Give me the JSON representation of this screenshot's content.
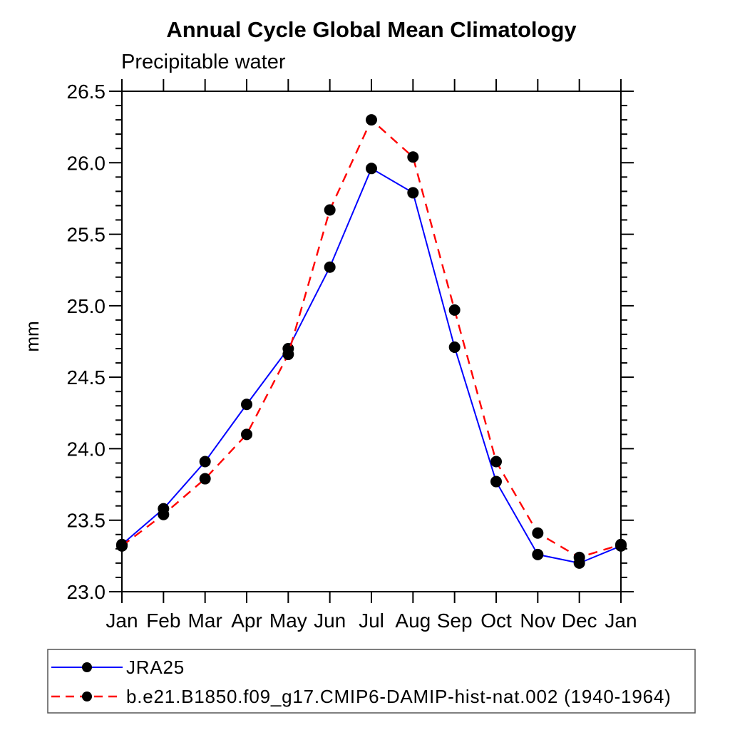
{
  "chart_data": {
    "type": "line",
    "title": "Annual Cycle Global Mean Climatology",
    "subtitle": "Precipitable water",
    "ylabel": "mm",
    "xlabel": "",
    "categories": [
      "Jan",
      "Feb",
      "Mar",
      "Apr",
      "May",
      "Jun",
      "Jul",
      "Aug",
      "Sep",
      "Oct",
      "Nov",
      "Dec",
      "Jan"
    ],
    "ylim": [
      23.0,
      26.5
    ],
    "ytick_major_interval": 0.5,
    "ytick_minor_interval": 0.1,
    "grid": false,
    "legend_position": "bottom-left-box",
    "marker_color": "#000000",
    "series": [
      {
        "name": "JRA25",
        "color": "#0000ff",
        "style": "solid",
        "marker": "circle",
        "values": [
          23.33,
          23.58,
          23.91,
          24.31,
          24.7,
          25.27,
          25.96,
          25.79,
          24.71,
          23.77,
          23.26,
          23.2,
          23.32
        ]
      },
      {
        "name": "b.e21.B1850.f09_g17.CMIP6-DAMIP-hist-nat.002 (1940-1964)",
        "color": "#ff0000",
        "style": "dashed",
        "marker": "circle",
        "values": [
          23.32,
          23.54,
          23.79,
          24.1,
          24.66,
          25.67,
          26.3,
          26.04,
          24.97,
          23.91,
          23.41,
          23.24,
          23.33
        ]
      }
    ]
  }
}
